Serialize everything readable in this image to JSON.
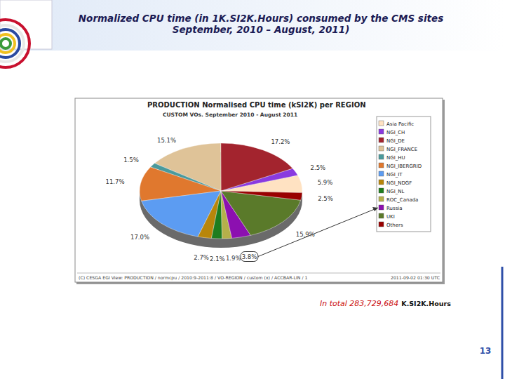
{
  "slide": {
    "title": [
      "Normalized CPU time (in 1K.SI2K.Hours) consumed by the CMS sites",
      "September, 2010 – August, 2011)"
    ],
    "total_text": "In total 283,729,684",
    "total_unit": "K.SI2K.Hours",
    "page_number": "13",
    "chart_credit": "(C) CESGA EGI View: PRODUCTION / normcpu / 2010:9-2011:8 / VO-REGION / custom (x) / ACCBAR-LIN / 1",
    "chart_timestamp": "2011-09-02 01:30 UTC"
  },
  "chart_data": {
    "type": "pie",
    "title": "PRODUCTION Normalised CPU time (kSI2K) per REGION",
    "subtitle": "CUSTOM VOs. September 2010 - August 2011",
    "categories": [
      "Asia Pacific",
      "NGI_CH",
      "NGI_DE",
      "NGI_FRANCE",
      "NGI_HU",
      "NGI_IBERGRID",
      "NGI_IT",
      "NGI_NDGF",
      "NGI_NL",
      "ROC_Canada",
      "Russia",
      "UKI",
      "Others"
    ],
    "values": [
      5.9,
      2.5,
      17.2,
      15.1,
      1.5,
      11.7,
      17.0,
      2.7,
      2.1,
      1.9,
      3.8,
      15.9,
      2.5
    ],
    "value_labels": [
      "5.9%",
      "2.5%",
      "17.2%",
      "15.1%",
      "1.5%",
      "11.7%",
      "17.0%",
      "2.7%",
      "2.1%",
      "1.9%",
      "3.8%",
      "15.9%",
      "2.5%"
    ],
    "colors": [
      "#ffe2c2",
      "#8a3ae0",
      "#a3242e",
      "#dfc398",
      "#4a9a9c",
      "#e0782e",
      "#5c9cf2",
      "#b8860b",
      "#1e7d1e",
      "#b5b04a",
      "#8c10b0",
      "#5a7a2a",
      "#990000"
    ],
    "data_labels": true,
    "legend": "right"
  }
}
